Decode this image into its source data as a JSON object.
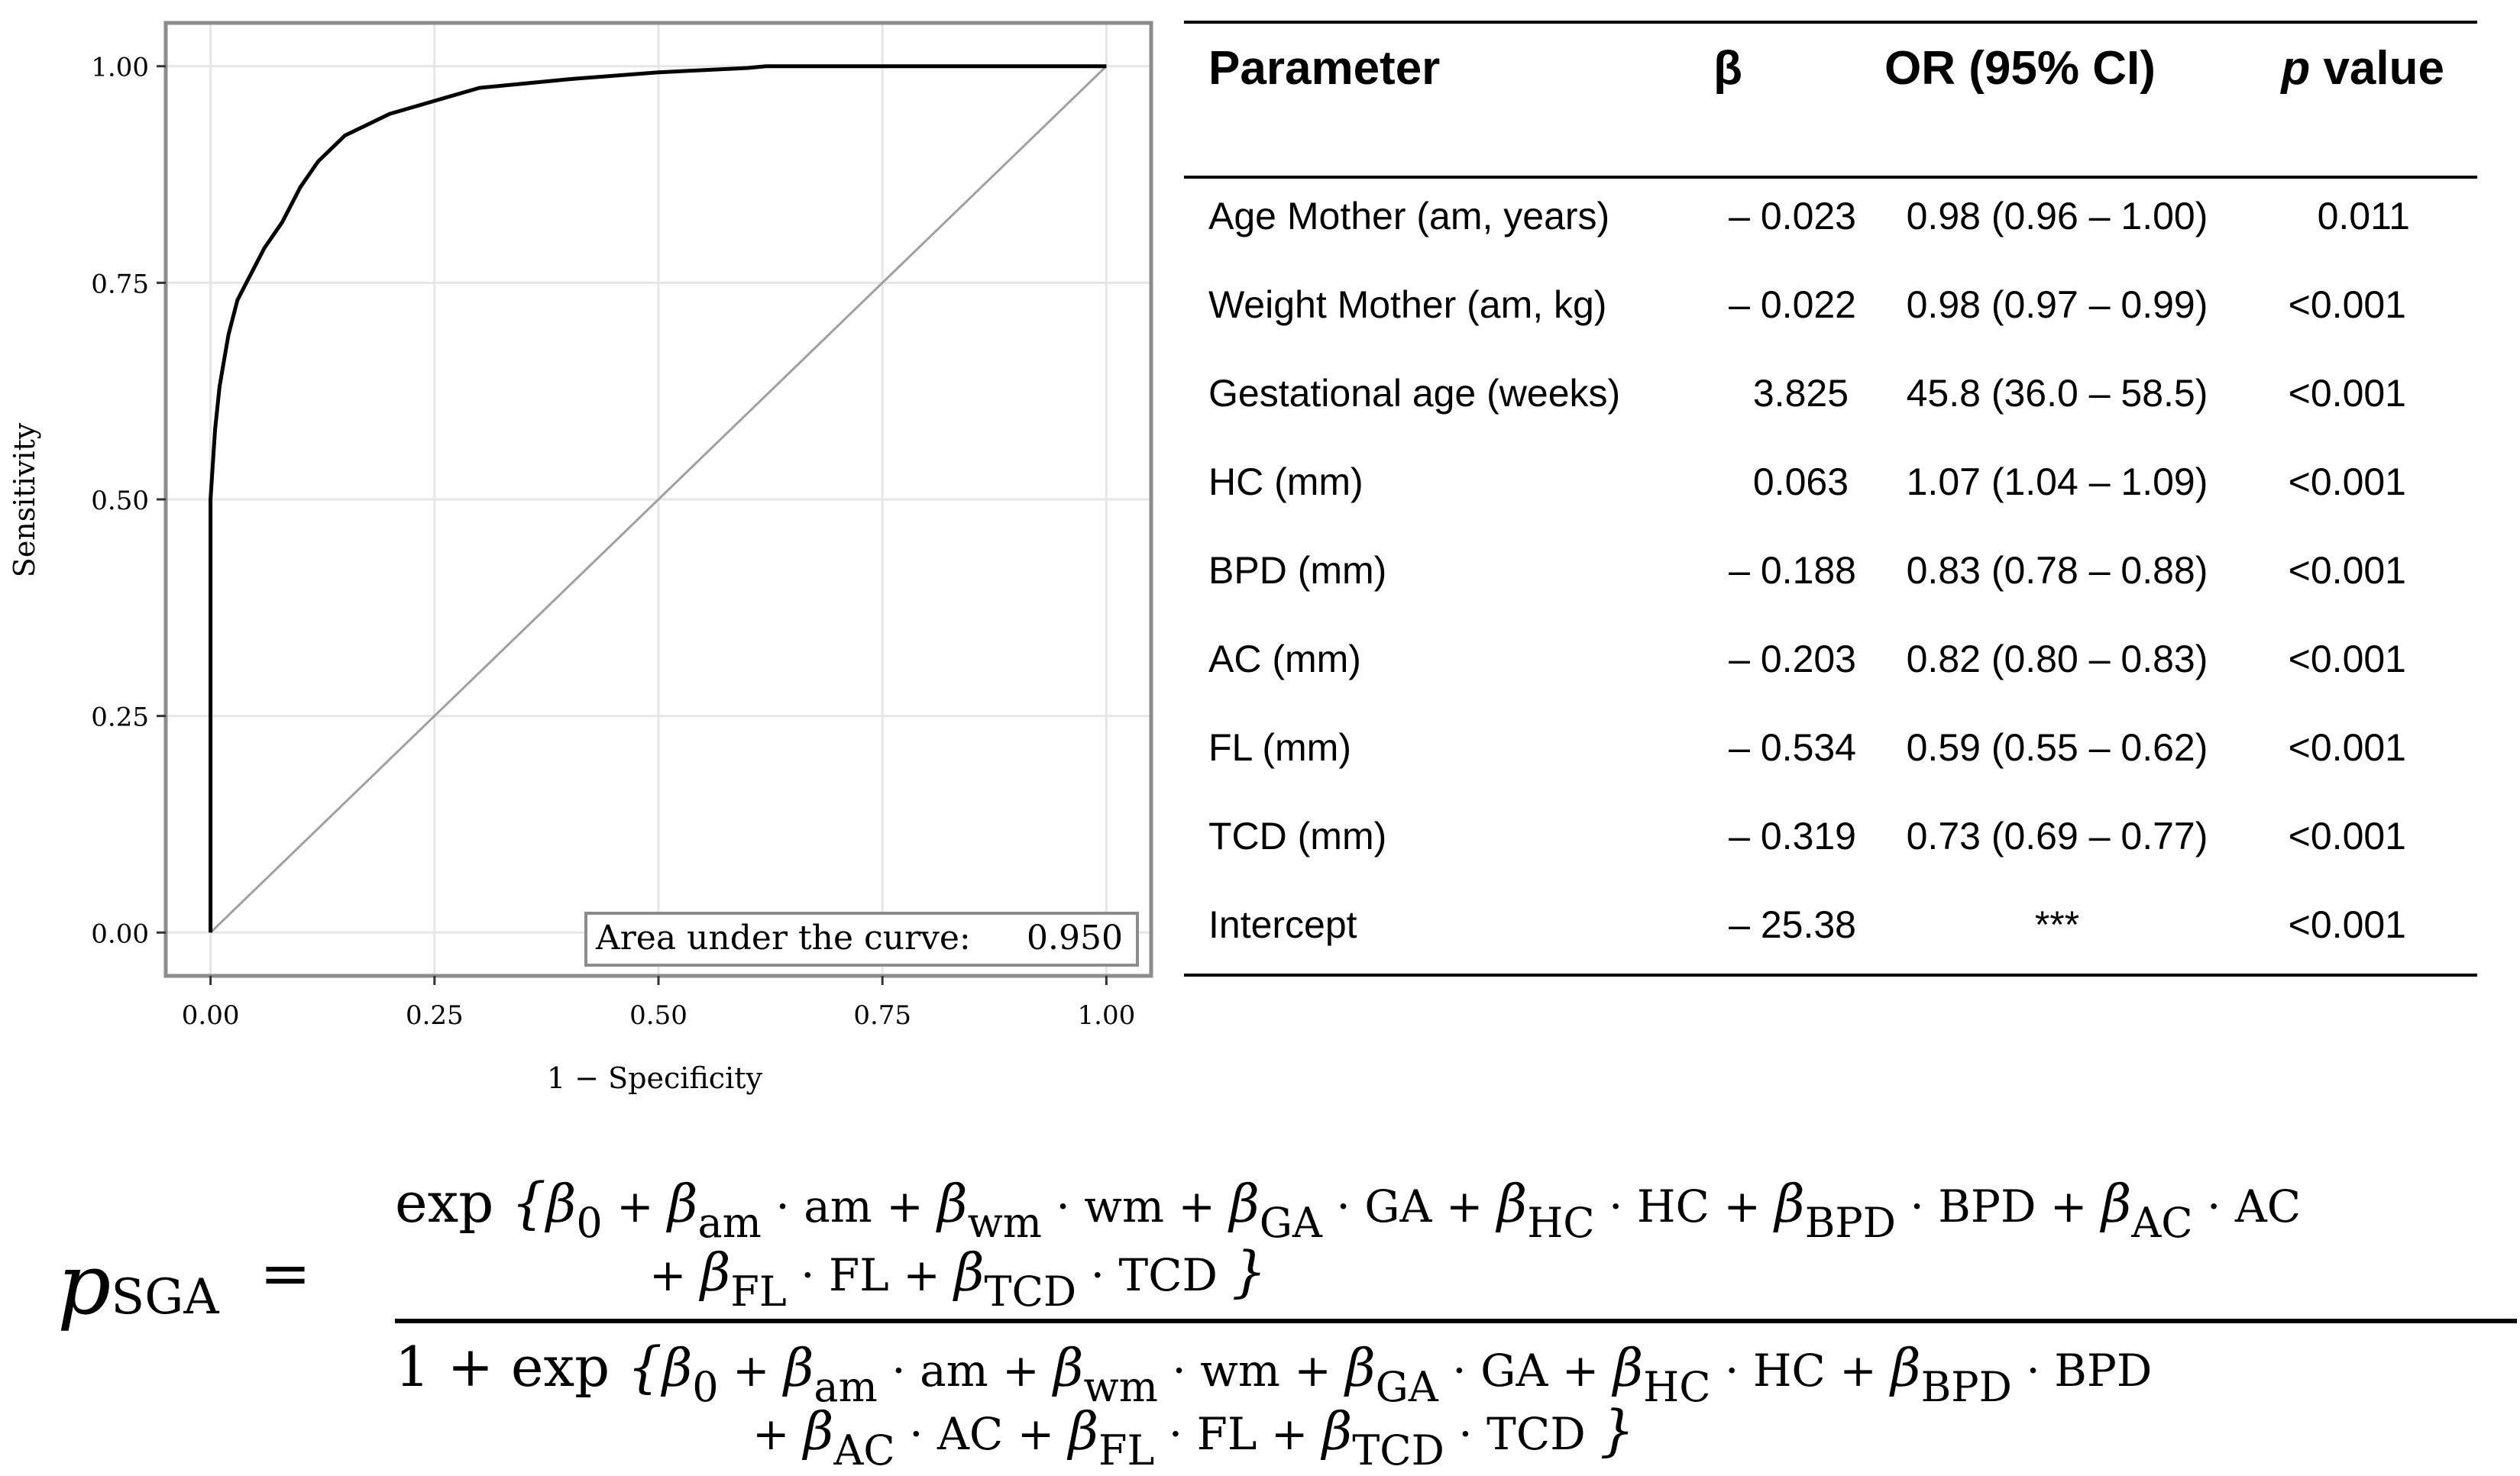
{
  "chart_data": [
    {
      "type": "line",
      "xlabel": "1 − Specificity",
      "ylabel": "Sensitivity",
      "xlim": [
        -0.05,
        1.05
      ],
      "ylim": [
        -0.05,
        1.05
      ],
      "x_ticks": [
        "0.00",
        "0.25",
        "0.50",
        "0.75",
        "1.00"
      ],
      "y_ticks": [
        "0.00",
        "0.25",
        "0.50",
        "0.75",
        "1.00"
      ],
      "grid": true,
      "reference_line": {
        "x": [
          0,
          1
        ],
        "y": [
          0,
          1
        ]
      },
      "series": [
        {
          "x": [
            0,
            0,
            0.005,
            0.01,
            0.015,
            0.02,
            0.03,
            0.04,
            0.05,
            0.06,
            0.08,
            0.1,
            0.12,
            0.15,
            0.18,
            0.2,
            0.25,
            0.3,
            0.4,
            0.5,
            0.6,
            0.62,
            1.0
          ],
          "y": [
            0,
            0.5,
            0.58,
            0.63,
            0.66,
            0.69,
            0.73,
            0.75,
            0.77,
            0.79,
            0.82,
            0.86,
            0.89,
            0.92,
            0.935,
            0.945,
            0.96,
            0.975,
            0.985,
            0.993,
            0.998,
            1.0,
            1.0
          ]
        }
      ],
      "annotation": {
        "label": "Area under the curve:",
        "value": "0.950",
        "placement": "bottom-right"
      }
    },
    {
      "type": "table",
      "columns": [
        "Parameter",
        "β",
        "OR (95% CI)",
        "p value"
      ],
      "rows": [
        [
          "Age Mother (am, years)",
          "– 0.023",
          "0.98 (0.96 – 1.00)",
          "0.011"
        ],
        [
          "Weight Mother (am, kg)",
          "– 0.022",
          "0.98 (0.97 – 0.99)",
          "<0.001"
        ],
        [
          "Gestational age (weeks)",
          "3.825",
          "45.8 (36.0 – 58.5)",
          "<0.001"
        ],
        [
          "HC (mm)",
          "0.063",
          "1.07 (1.04 – 1.09)",
          "<0.001"
        ],
        [
          "BPD (mm)",
          "– 0.188",
          "0.83 (0.78 – 0.88)",
          "<0.001"
        ],
        [
          "AC (mm)",
          "– 0.203",
          "0.82 (0.80 – 0.83)",
          "<0.001"
        ],
        [
          "FL (mm)",
          "– 0.534",
          "0.59 (0.55 – 0.62)",
          "<0.001"
        ],
        [
          "TCD (mm)",
          "– 0.319",
          "0.73 (0.69 – 0.77)",
          "<0.001"
        ],
        [
          "Intercept",
          "– 25.38",
          "***",
          "<0.001"
        ]
      ]
    }
  ],
  "formula": {
    "lhs_symbol": "p",
    "lhs_sub": "SGA",
    "equals": "=",
    "exp": "exp",
    "num_line1": [
      {
        "t": "β",
        "s": "0",
        "v": "+"
      },
      {
        "t": "β",
        "s": "am",
        "v": "· am +"
      },
      {
        "t": "β",
        "s": "wm",
        "v": "· wm +"
      },
      {
        "t": "β",
        "s": "GA",
        "v": "· GA +"
      },
      {
        "t": "β",
        "s": "HC",
        "v": "· HC +"
      },
      {
        "t": "β",
        "s": "BPD",
        "v": "· BPD +"
      },
      {
        "t": "β",
        "s": "AC",
        "v": "· AC"
      }
    ],
    "num_line2": [
      {
        "t": "+ β",
        "s": "FL",
        "v": "· FL +"
      },
      {
        "t": "β",
        "s": "TCD",
        "v": "· TCD"
      }
    ],
    "den_prefix": "1 +",
    "den_line1": [
      {
        "t": "β",
        "s": "0",
        "v": "+"
      },
      {
        "t": "β",
        "s": "am",
        "v": "· am +"
      },
      {
        "t": "β",
        "s": "wm",
        "v": "· wm +"
      },
      {
        "t": "β",
        "s": "GA",
        "v": "· GA +"
      },
      {
        "t": "β",
        "s": "HC",
        "v": "· HC +"
      },
      {
        "t": "β",
        "s": "BPD",
        "v": "· BPD"
      }
    ],
    "den_line2": [
      {
        "t": "+ β",
        "s": "AC",
        "v": "· AC +"
      },
      {
        "t": "β",
        "s": "FL",
        "v": "· FL +"
      },
      {
        "t": "β",
        "s": "TCD",
        "v": "· TCD"
      }
    ],
    "brace_open": "{",
    "brace_close": "}"
  },
  "colors": {
    "curve": "#000000",
    "reference": "#a0a0a0",
    "frame": "#8c8c8c",
    "grid": "#e6e6e6",
    "text": "#000000"
  }
}
